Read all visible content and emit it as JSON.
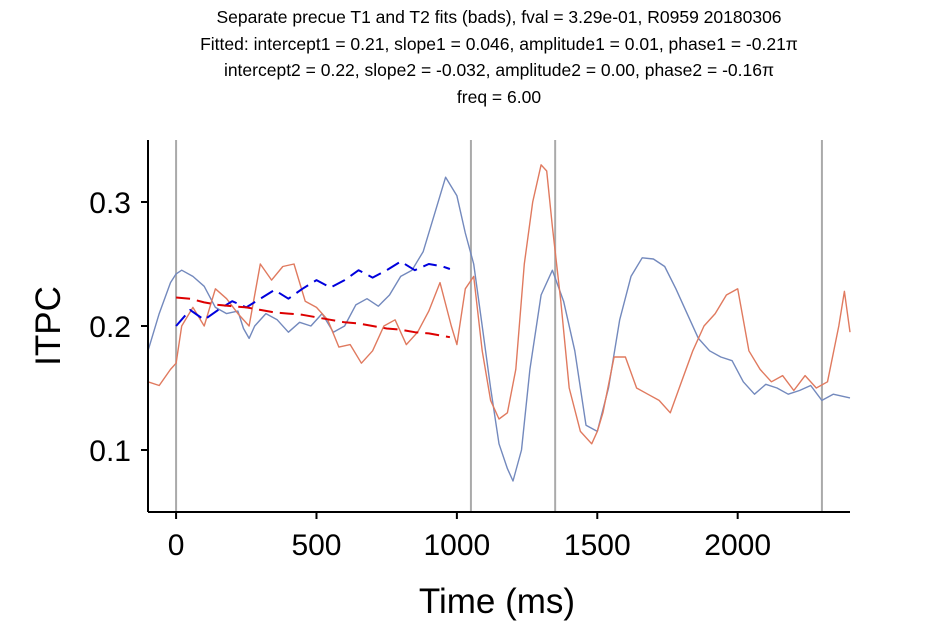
{
  "chart_data": {
    "type": "line",
    "title_lines": [
      "Separate precue T1 and T2 fits (bads), fval = 3.29e-01, R0959 20180306",
      "Fitted: intercept1 = 0.21, slope1 = 0.046, amplitude1 = 0.01, phase1 = -0.21π",
      "intercept2 = 0.22, slope2 = -0.032, amplitude2 = 0.00, phase2 = -0.16π",
      "freq = 6.00"
    ],
    "xlabel": "Time (ms)",
    "ylabel": "ITPC",
    "xlim": [
      -100,
      2400
    ],
    "ylim": [
      0.05,
      0.35
    ],
    "xticks": [
      0,
      500,
      1000,
      1500,
      2000
    ],
    "yticks": [
      0.1,
      0.2,
      0.3
    ],
    "ytick_labels": [
      "0.1",
      "0.2",
      "0.3"
    ],
    "grid": false,
    "vlines": [
      0,
      1050,
      1350,
      2300
    ],
    "colors": {
      "t1": "#7389bd",
      "t2": "#e07a5f",
      "fit1": "#0000dd",
      "fit2": "#dd0000",
      "vline": "#aaaaaa"
    },
    "series": [
      {
        "key": "t1",
        "style": "solid",
        "x": [
          -100,
          -60,
          -20,
          0,
          20,
          60,
          100,
          140,
          180,
          220,
          240,
          260,
          280,
          320,
          360,
          400,
          440,
          480,
          520,
          560,
          600,
          640,
          680,
          720,
          760,
          800,
          840,
          880,
          920,
          960,
          1000,
          1030,
          1060,
          1090,
          1120,
          1150,
          1180,
          1200,
          1230,
          1260,
          1300,
          1340,
          1380,
          1420,
          1460,
          1500,
          1540,
          1580,
          1620,
          1660,
          1700,
          1740,
          1780,
          1820,
          1860,
          1900,
          1940,
          1980,
          2020,
          2060,
          2100,
          2140,
          2180,
          2220,
          2260,
          2300,
          2340,
          2400
        ],
        "y": [
          0.18,
          0.21,
          0.235,
          0.242,
          0.245,
          0.24,
          0.232,
          0.215,
          0.21,
          0.212,
          0.198,
          0.19,
          0.2,
          0.21,
          0.205,
          0.195,
          0.203,
          0.2,
          0.21,
          0.195,
          0.2,
          0.217,
          0.222,
          0.216,
          0.225,
          0.24,
          0.245,
          0.26,
          0.29,
          0.32,
          0.305,
          0.275,
          0.25,
          0.2,
          0.15,
          0.105,
          0.085,
          0.075,
          0.1,
          0.165,
          0.225,
          0.245,
          0.22,
          0.18,
          0.12,
          0.115,
          0.15,
          0.205,
          0.24,
          0.255,
          0.254,
          0.248,
          0.23,
          0.21,
          0.19,
          0.18,
          0.175,
          0.172,
          0.155,
          0.145,
          0.153,
          0.15,
          0.145,
          0.148,
          0.152,
          0.14,
          0.145,
          0.142
        ]
      },
      {
        "key": "t2",
        "style": "solid",
        "x": [
          -100,
          -60,
          -20,
          0,
          20,
          60,
          100,
          140,
          180,
          220,
          260,
          300,
          340,
          380,
          420,
          460,
          500,
          540,
          580,
          620,
          660,
          700,
          740,
          780,
          820,
          860,
          900,
          940,
          980,
          1000,
          1030,
          1060,
          1090,
          1120,
          1150,
          1180,
          1210,
          1240,
          1270,
          1300,
          1320,
          1340,
          1370,
          1400,
          1440,
          1480,
          1500,
          1520,
          1560,
          1600,
          1640,
          1680,
          1720,
          1760,
          1800,
          1840,
          1880,
          1920,
          1960,
          2000,
          2040,
          2080,
          2120,
          2160,
          2200,
          2240,
          2280,
          2320,
          2360,
          2380,
          2400
        ],
        "y": [
          0.155,
          0.152,
          0.165,
          0.17,
          0.2,
          0.215,
          0.2,
          0.23,
          0.222,
          0.21,
          0.2,
          0.25,
          0.237,
          0.248,
          0.25,
          0.22,
          0.215,
          0.205,
          0.183,
          0.185,
          0.17,
          0.18,
          0.2,
          0.205,
          0.185,
          0.195,
          0.212,
          0.235,
          0.2,
          0.185,
          0.23,
          0.24,
          0.18,
          0.14,
          0.125,
          0.13,
          0.165,
          0.25,
          0.3,
          0.33,
          0.325,
          0.28,
          0.22,
          0.15,
          0.115,
          0.105,
          0.115,
          0.13,
          0.175,
          0.175,
          0.15,
          0.145,
          0.14,
          0.13,
          0.155,
          0.18,
          0.2,
          0.21,
          0.225,
          0.23,
          0.18,
          0.165,
          0.155,
          0.16,
          0.148,
          0.16,
          0.15,
          0.155,
          0.2,
          0.228,
          0.195
        ]
      },
      {
        "key": "fit1",
        "style": "dashed",
        "x": [
          0,
          50,
          100,
          150,
          200,
          250,
          300,
          350,
          400,
          450,
          500,
          550,
          600,
          650,
          700,
          750,
          800,
          850,
          900,
          950,
          975
        ],
        "y": [
          0.2,
          0.213,
          0.205,
          0.213,
          0.22,
          0.215,
          0.222,
          0.229,
          0.222,
          0.23,
          0.237,
          0.231,
          0.237,
          0.245,
          0.239,
          0.245,
          0.252,
          0.245,
          0.25,
          0.248,
          0.246
        ]
      },
      {
        "key": "fit2",
        "style": "dashed",
        "x": [
          0,
          50,
          100,
          150,
          200,
          250,
          300,
          350,
          400,
          450,
          500,
          550,
          600,
          650,
          700,
          750,
          800,
          850,
          900,
          950,
          975
        ],
        "y": [
          0.223,
          0.222,
          0.219,
          0.217,
          0.216,
          0.215,
          0.213,
          0.211,
          0.21,
          0.209,
          0.207,
          0.205,
          0.203,
          0.202,
          0.2,
          0.198,
          0.197,
          0.195,
          0.194,
          0.192,
          0.191
        ]
      }
    ]
  }
}
